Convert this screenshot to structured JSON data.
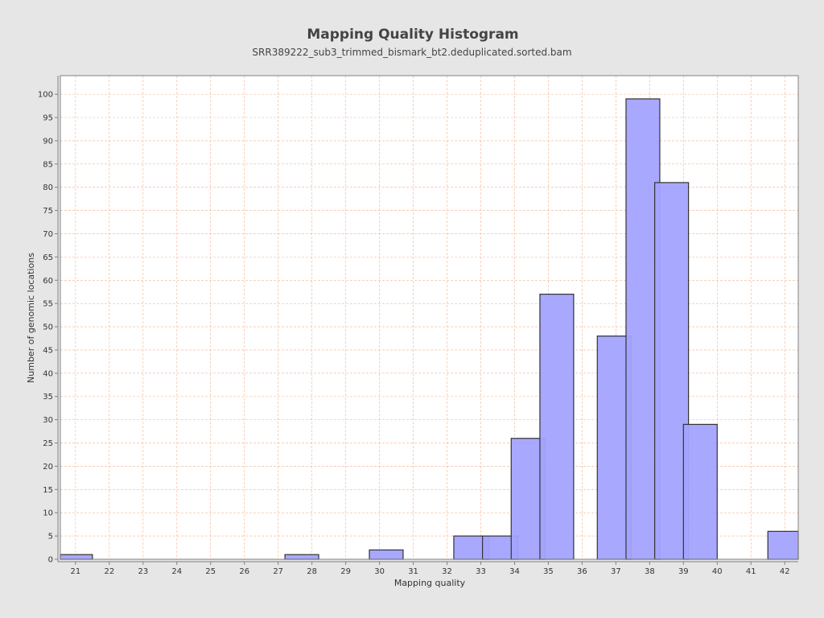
{
  "chart_data": {
    "type": "bar",
    "title": "Mapping Quality Histogram",
    "subtitle": "SRR389222_sub3_trimmed_bismark_bt2.deduplicated.sorted.bam",
    "xlabel": "Mapping quality",
    "ylabel": "Number of genomic locations",
    "xlim": [
      20.55,
      42.4
    ],
    "ylim": [
      0,
      104
    ],
    "x_ticks": [
      21,
      22,
      23,
      24,
      25,
      26,
      27,
      28,
      29,
      30,
      31,
      32,
      33,
      34,
      35,
      36,
      37,
      38,
      39,
      40,
      41,
      42
    ],
    "y_ticks": [
      0,
      5,
      10,
      15,
      20,
      25,
      30,
      35,
      40,
      45,
      50,
      55,
      60,
      65,
      70,
      75,
      80,
      85,
      90,
      95,
      100
    ],
    "grid": true,
    "bar_color": "#a3a3ff",
    "bar_edge_color": "#333333",
    "grid_color": "#f3b38c",
    "bars": [
      {
        "x0": 20.55,
        "x1": 21.5,
        "value": 1
      },
      {
        "x0": 27.2,
        "x1": 28.2,
        "value": 1
      },
      {
        "x0": 29.7,
        "x1": 30.7,
        "value": 2
      },
      {
        "x0": 32.2,
        "x1": 33.25,
        "value": 5
      },
      {
        "x0": 33.05,
        "x1": 34.1,
        "value": 5
      },
      {
        "x0": 33.9,
        "x1": 34.9,
        "value": 26
      },
      {
        "x0": 34.75,
        "x1": 35.75,
        "value": 57
      },
      {
        "x0": 36.45,
        "x1": 37.45,
        "value": 48
      },
      {
        "x0": 37.3,
        "x1": 38.3,
        "value": 99
      },
      {
        "x0": 38.15,
        "x1": 39.15,
        "value": 81
      },
      {
        "x0": 39.0,
        "x1": 40.0,
        "value": 29
      },
      {
        "x0": 41.5,
        "x1": 42.4,
        "value": 6
      }
    ]
  }
}
